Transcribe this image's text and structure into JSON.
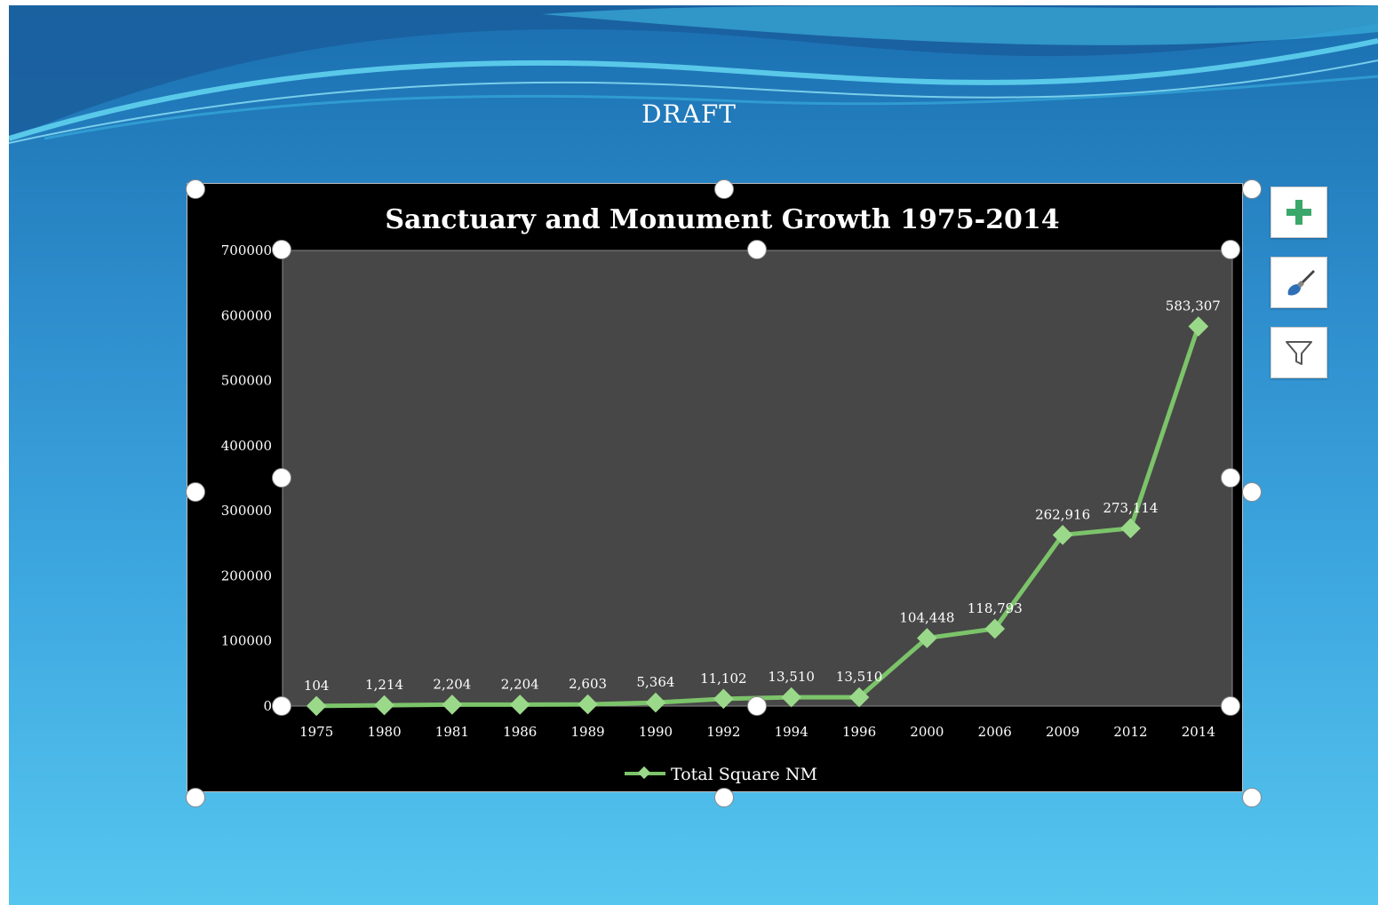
{
  "slide": {
    "watermark": "DRAFT"
  },
  "side_buttons": [
    {
      "name": "chart-elements-button",
      "icon": "plus-icon",
      "color": "#3aa86b"
    },
    {
      "name": "chart-styles-button",
      "icon": "paintbrush-icon",
      "color": "#2f6fb5"
    },
    {
      "name": "chart-filters-button",
      "icon": "filter-icon",
      "color": "#555555"
    }
  ],
  "colors": {
    "line": "#7cc46a",
    "marker": "#9bd98a",
    "plot_area": "#474747",
    "chart_area": "#000000",
    "text": "#ffffff"
  },
  "chart_data": {
    "type": "line",
    "title": "Sanctuary and Monument Growth 1975-2014",
    "xlabel": "",
    "ylabel": "",
    "categories": [
      "1975",
      "1980",
      "1981",
      "1986",
      "1989",
      "1990",
      "1992",
      "1994",
      "1996",
      "2000",
      "2006",
      "2009",
      "2012",
      "2014"
    ],
    "series": [
      {
        "name": "Total Square NM",
        "values": [
          104,
          1214,
          2204,
          2204,
          2603,
          5364,
          11102,
          13510,
          13510,
          104448,
          118793,
          262916,
          273114,
          583307
        ],
        "labels": [
          "104",
          "1,214",
          "2,204",
          "2,204",
          "2,603",
          "5,364",
          "11,102",
          "13,510",
          "13,510",
          "104,448",
          "118,793",
          "262,916",
          "273,114",
          "583,307"
        ]
      }
    ],
    "ylim": [
      0,
      700000
    ],
    "yticks": [
      "0",
      "100000",
      "200000",
      "300000",
      "400000",
      "500000",
      "600000",
      "700000"
    ],
    "grid": false,
    "legend_position": "bottom"
  }
}
